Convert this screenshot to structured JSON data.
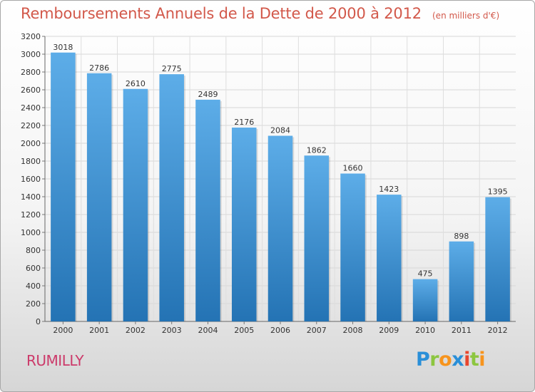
{
  "chart_data": {
    "type": "bar",
    "title": "Remboursements Annuels de la Dette de 2000 à 2012",
    "subtitle": "(en milliers d'€)",
    "xlabel": "",
    "ylabel": "",
    "categories": [
      "2000",
      "2001",
      "2002",
      "2003",
      "2004",
      "2005",
      "2006",
      "2007",
      "2008",
      "2009",
      "2010",
      "2011",
      "2012"
    ],
    "values": [
      3018,
      2786,
      2610,
      2775,
      2489,
      2176,
      2084,
      1862,
      1660,
      1423,
      475,
      898,
      1395
    ],
    "data_labels": [
      "3018",
      "2786",
      "2610",
      "2775",
      "2489",
      "2176",
      "2084",
      "1862",
      "1660",
      "1423",
      "475",
      "898",
      "1395"
    ],
    "ylim": [
      0,
      3200
    ],
    "yticks": [
      "0",
      "200",
      "400",
      "600",
      "800",
      "1000",
      "1200",
      "1400",
      "1600",
      "1800",
      "2000",
      "2200",
      "2400",
      "2600",
      "2800",
      "3000",
      "3200"
    ],
    "grid": true,
    "legend": "none",
    "bar_color_top": "#5dade8",
    "bar_color_bottom": "#2473b4"
  },
  "footer": {
    "commune": "RUMILLY",
    "logo_letters": [
      {
        "ch": "P",
        "color": "#2a8fd8"
      },
      {
        "ch": "r",
        "color": "#8cc63f"
      },
      {
        "ch": "o",
        "color": "#f7941d"
      },
      {
        "ch": "x",
        "color": "#2a8fd8"
      },
      {
        "ch": "i",
        "color": "#e8462e"
      },
      {
        "ch": "t",
        "color": "#8cc63f"
      },
      {
        "ch": "i",
        "color": "#f7941d"
      }
    ]
  }
}
